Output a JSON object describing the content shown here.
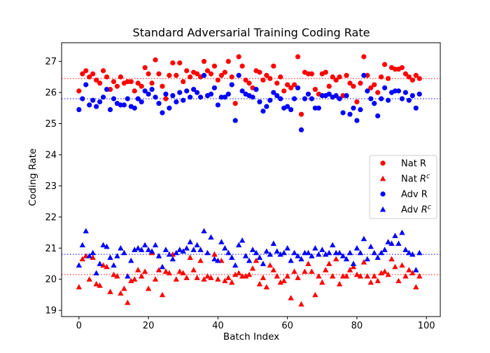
{
  "chart_data": {
    "type": "scatter",
    "title": "Standard Adversarial Training Coding Rate",
    "xlabel": "Batch Index",
    "ylabel": "Coding Rate",
    "xlim": [
      -5,
      104
    ],
    "ylim": [
      18.8,
      27.6
    ],
    "xticks": [
      0,
      20,
      40,
      60,
      80,
      100
    ],
    "yticks": [
      19,
      20,
      21,
      22,
      23,
      24,
      25,
      26,
      27
    ],
    "grid": false,
    "legend_position": "center-right",
    "colors": {
      "nat": "#ff0000",
      "adv": "#0000ff"
    },
    "reference_lines": [
      {
        "y": 26.45,
        "color": "#ff0000",
        "style": "dotted"
      },
      {
        "y": 25.8,
        "color": "#0000ff",
        "style": "dotted"
      },
      {
        "y": 20.8,
        "color": "#0000ff",
        "style": "dotted"
      },
      {
        "y": 20.15,
        "color": "#ff0000",
        "style": "dotted"
      }
    ],
    "series": [
      {
        "name": "Nat R",
        "marker": "circle",
        "color": "#ff0000",
        "values": [
          26.05,
          26.6,
          26.7,
          26.5,
          26.6,
          26.4,
          26.3,
          26.7,
          26.5,
          26.1,
          26.35,
          26.2,
          26.5,
          26.3,
          26.35,
          26.35,
          26.05,
          26.3,
          26.2,
          26.8,
          26.6,
          26.3,
          27.05,
          26.6,
          26.2,
          25.8,
          26.55,
          26.95,
          26.55,
          26.95,
          26.35,
          26.7,
          26.5,
          26.65,
          26.6,
          26.5,
          27.0,
          26.7,
          26.6,
          26.85,
          26.4,
          26.55,
          26.65,
          27.0,
          26.5,
          25.65,
          27.15,
          26.85,
          26.4,
          26.3,
          26.15,
          26.7,
          26.65,
          26.4,
          26.55,
          26.45,
          26.85,
          26.3,
          26.5,
          26.05,
          26.25,
          26.15,
          26.25,
          27.15,
          25.3,
          26.65,
          26.6,
          26.6,
          26.1,
          25.95,
          26.6,
          26.65,
          26.2,
          26.5,
          26.4,
          26.5,
          25.9,
          26.55,
          26.3,
          26.2,
          25.7,
          26.3,
          27.15,
          26.55,
          26.15,
          26.25,
          26.0,
          26.5,
          26.9,
          26.45,
          26.8,
          26.75,
          26.75,
          26.8,
          26.6,
          26.5,
          26.4,
          26.55,
          26.45
        ]
      },
      {
        "name": "Nat R^c",
        "marker": "triangle",
        "color": "#ff0000",
        "values": [
          19.75,
          20.65,
          20.75,
          20.0,
          20.7,
          19.85,
          19.8,
          20.45,
          20.4,
          19.6,
          20.15,
          20.1,
          19.55,
          19.7,
          19.25,
          19.95,
          20.0,
          20.3,
          20.1,
          20.25,
          19.7,
          20.85,
          20.0,
          20.3,
          19.5,
          20.25,
          20.2,
          20.8,
          20.0,
          20.25,
          20.2,
          20.05,
          20.7,
          20.3,
          20.05,
          20.6,
          20.0,
          20.1,
          20.05,
          20.8,
          20.0,
          20.6,
          19.95,
          20.05,
          19.9,
          20.15,
          20.2,
          20.1,
          20.1,
          20.15,
          20.35,
          20.6,
          19.85,
          20.05,
          19.75,
          20.45,
          20.3,
          20.1,
          19.9,
          19.95,
          20.1,
          19.4,
          20.25,
          20.05,
          19.2,
          20.25,
          20.5,
          20.25,
          19.5,
          20.1,
          19.9,
          20.3,
          20.5,
          20.1,
          20.65,
          19.85,
          20.1,
          20.1,
          20.3,
          20.4,
          20.15,
          20.1,
          20.55,
          20.1,
          19.9,
          20.1,
          19.95,
          20.2,
          20.25,
          20.15,
          20.65,
          20.4,
          19.95,
          20.45,
          20.1,
          20.3,
          20.2,
          19.75,
          20.1
        ]
      },
      {
        "name": "Adv R",
        "marker": "circle",
        "color": "#0000ff",
        "values": [
          25.45,
          25.8,
          26.25,
          25.6,
          25.75,
          25.55,
          25.7,
          25.85,
          26.1,
          25.45,
          25.8,
          25.65,
          25.6,
          25.6,
          25.8,
          25.55,
          25.5,
          25.8,
          25.7,
          26.05,
          25.95,
          26.1,
          25.85,
          25.65,
          25.35,
          25.95,
          25.5,
          25.9,
          25.7,
          26.0,
          25.75,
          26.05,
          25.85,
          26.1,
          26.0,
          25.85,
          26.55,
          25.9,
          25.95,
          26.15,
          25.6,
          25.85,
          25.85,
          25.95,
          26.25,
          25.1,
          26.55,
          26.05,
          25.95,
          25.9,
          25.85,
          26.1,
          25.7,
          25.4,
          25.55,
          25.75,
          26.0,
          25.9,
          25.8,
          25.5,
          25.55,
          25.45,
          25.8,
          26.15,
          24.8,
          25.8,
          25.95,
          25.8,
          25.5,
          25.5,
          25.9,
          25.9,
          25.95,
          25.85,
          25.9,
          25.8,
          25.35,
          25.9,
          25.3,
          25.5,
          25.1,
          25.45,
          26.55,
          26.05,
          25.8,
          25.65,
          25.25,
          25.8,
          26.15,
          25.75,
          26.0,
          26.05,
          26.05,
          25.8,
          26.0,
          25.75,
          25.9,
          25.5,
          25.95
        ]
      },
      {
        "name": "Adv R^c",
        "marker": "triangle",
        "color": "#0000ff",
        "values": [
          20.45,
          21.1,
          21.55,
          20.75,
          20.85,
          20.2,
          20.5,
          21.1,
          21.05,
          20.7,
          20.45,
          20.75,
          21.0,
          20.85,
          20.1,
          20.6,
          20.95,
          21.0,
          20.95,
          21.1,
          20.95,
          20.9,
          21.1,
          20.75,
          20.4,
          20.95,
          20.8,
          20.65,
          20.85,
          20.95,
          20.9,
          21.0,
          21.2,
          20.95,
          21.1,
          20.95,
          21.55,
          20.85,
          21.35,
          20.65,
          20.6,
          21.2,
          21.0,
          20.85,
          20.7,
          20.45,
          21.1,
          21.25,
          20.75,
          20.6,
          20.95,
          20.85,
          20.7,
          20.5,
          20.9,
          20.8,
          21.15,
          20.9,
          20.8,
          20.85,
          21.0,
          20.6,
          20.85,
          20.75,
          20.65,
          20.85,
          20.85,
          20.75,
          21.0,
          20.8,
          20.95,
          20.8,
          20.85,
          21.1,
          20.85,
          20.85,
          20.75,
          20.65,
          20.85,
          20.5,
          21.0,
          20.85,
          21.3,
          20.65,
          21.05,
          20.85,
          20.7,
          20.85,
          20.95,
          21.2,
          21.15,
          21.4,
          21.15,
          21.5,
          20.95,
          20.85,
          20.8,
          20.3,
          20.85
        ]
      }
    ]
  }
}
